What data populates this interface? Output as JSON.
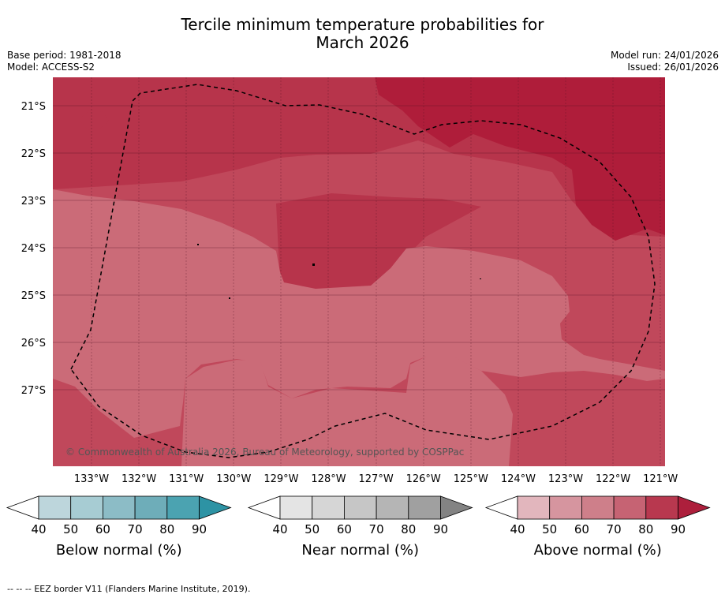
{
  "header": {
    "title_line1": "Tercile minimum temperature probabilities for",
    "title_line2": "March 2026",
    "base_period": "Base period: 1981-2018",
    "model": "Model: ACCESS-S2",
    "model_run": "Model run: 24/01/2026",
    "issued": "Issued: 26/01/2026"
  },
  "map": {
    "lat_labels": [
      "21°S",
      "22°S",
      "23°S",
      "24°S",
      "25°S",
      "26°S",
      "27°S"
    ],
    "lon_labels": [
      "133°W",
      "132°W",
      "131°W",
      "130°W",
      "129°W",
      "128°W",
      "127°W",
      "126°W",
      "125°W",
      "124°W",
      "123°W",
      "122°W",
      "121°W"
    ],
    "credit": "© Commonwealth of Australia 2026, Bureau of Meteorology, supported by COSPPac",
    "zone_colors": {
      "above_60_70": "#cb6b78",
      "above_70_80": "#c0485b",
      "above_80_90": "#b7344b",
      "above_90": "#af1d3a"
    }
  },
  "colorbars": [
    {
      "name": "below",
      "title": "Below normal (%)",
      "ticks": [
        "40",
        "50",
        "60",
        "70",
        "80",
        "90"
      ],
      "colors": [
        "#ffffff",
        "#bdd6dc",
        "#a7ccd3",
        "#8cbcc6",
        "#6eadb9",
        "#4ba3b1",
        "#2d93a4"
      ]
    },
    {
      "name": "near",
      "title": "Near normal (%)",
      "ticks": [
        "40",
        "50",
        "60",
        "70",
        "80",
        "90"
      ],
      "colors": [
        "#ffffff",
        "#e4e4e4",
        "#d6d6d6",
        "#c6c6c6",
        "#b5b5b5",
        "#a0a0a0",
        "#838383"
      ]
    },
    {
      "name": "above",
      "title": "Above normal (%)",
      "ticks": [
        "40",
        "50",
        "60",
        "70",
        "80",
        "90"
      ],
      "colors": [
        "#ffffff",
        "#e2b6bd",
        "#d6959f",
        "#ce7f8a",
        "#c66373",
        "#b8384f",
        "#ad1f3c"
      ]
    }
  ],
  "footer": {
    "legend_symbol": "--  --  --",
    "legend_text": "EEZ border V11 (Flanders Marine Institute, 2019)."
  }
}
